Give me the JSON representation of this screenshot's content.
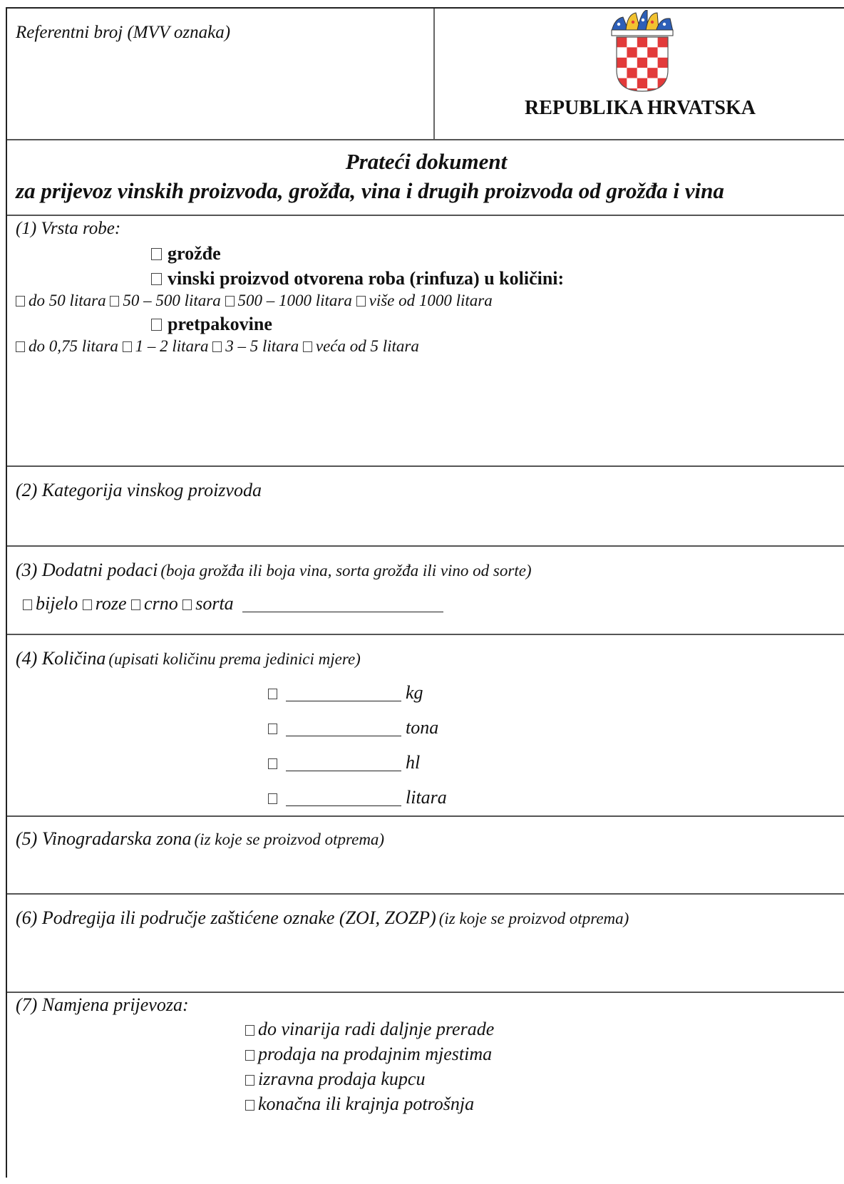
{
  "header": {
    "reference_label": "Referentni broj (MVV oznaka)",
    "country_name": "REPUBLIKA HRVATSKA"
  },
  "title": {
    "line1": "Prateći dokument",
    "line2": "za prijevoz vinskih proizvoda, grožđa, vina i drugih proizvoda od grožđa i vina"
  },
  "section1": {
    "label": "(1) Vrsta robe:",
    "grapes": "grožđe",
    "bulk": "vinski proizvod otvorena roba (rinfuza) u količini:",
    "bulk_options": [
      "do 50 litara",
      "50 – 500 litara",
      "500 – 1000 litara",
      "više od 1000 litara"
    ],
    "prepacked": "pretpakovine",
    "prepacked_options": [
      "do 0,75 litara",
      "1 – 2 litara",
      "3 – 5 litara",
      "veća od 5 litara"
    ]
  },
  "section2": {
    "label": "(2) Kategorija vinskog proizvoda"
  },
  "section3": {
    "label": "(3) Dodatni podaci",
    "label_note": "(boja grožđa ili boja vina, sorta grožđa ili vino od sorte)",
    "options": [
      "bijelo",
      "roze",
      "crno",
      "sorta"
    ]
  },
  "section4": {
    "label": "(4) Količina",
    "label_note": "(upisati količinu prema jedinici mjere)",
    "units": [
      "kg",
      "tona",
      "hl",
      "litara"
    ]
  },
  "section5": {
    "label": "(5) Vinogradarska zona",
    "label_note": "(iz koje se proizvod otprema)"
  },
  "section6": {
    "label": "(6) Podregija ili područje zaštićene oznake (ZOI, ZOZP)",
    "label_note": "(iz koje se proizvod otprema)"
  },
  "section7": {
    "label": "(7) Namjena prijevoza:",
    "options": [
      "do vinarija radi daljnje prerade",
      "prodaja na prodajnim mjestima",
      "izravna prodaja kupcu",
      "konačna ili krajnja potrošnja"
    ]
  },
  "colors": {
    "shield_red": "#e23a3a",
    "crown_blue": "#2d5fb8",
    "crown_yellow": "#f2c230",
    "border": "#222222"
  }
}
